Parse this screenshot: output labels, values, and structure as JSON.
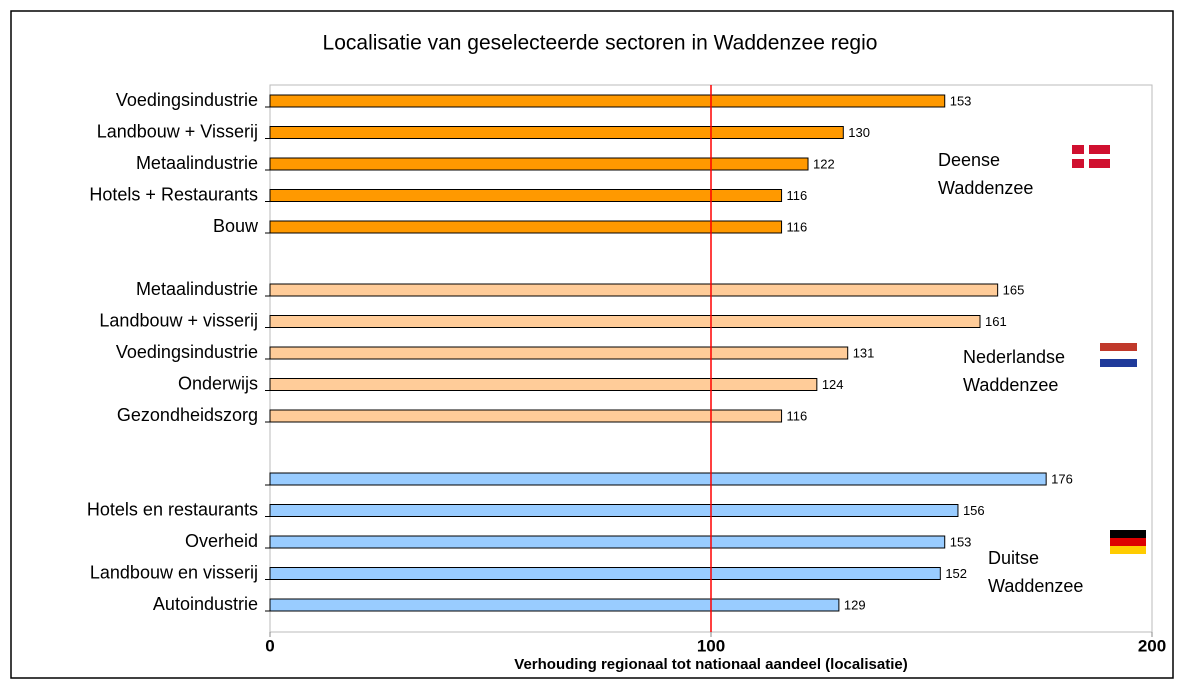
{
  "chart_data": {
    "type": "bar",
    "orientation": "horizontal",
    "title": "Localisatie van geselecteerde sectoren in Waddenzee regio",
    "x_label": "Verhouding regionaal tot nationaal aandeel (localisatie)",
    "xlim": [
      0,
      200
    ],
    "xticks": [
      0,
      100,
      200
    ],
    "reference_line": {
      "value": 100,
      "color": "#ff0000"
    },
    "series": [
      {
        "name": "Deense Waddenzee",
        "color": "#ff9900",
        "categories": [
          "Voedingsindustrie",
          "Landbouw + Visserij",
          "Metaalindustrie",
          "Hotels + Restaurants",
          "Bouw"
        ],
        "values": [
          153,
          130,
          122,
          116,
          116
        ]
      },
      {
        "name": "Nederlandse Waddenzee",
        "color": "#ffcc99",
        "categories": [
          "Metaalindustrie",
          "Landbouw + visserij",
          "Voedingsindustrie",
          "Onderwijs",
          "Gezondheidszorg"
        ],
        "values": [
          165,
          161,
          131,
          124,
          116
        ]
      },
      {
        "name": "Duitse Waddenzee",
        "color": "#99ccff",
        "categories": [
          null,
          "Hotels en restaurants",
          "Overheid",
          "Landbouw en visserij",
          "Autoindustrie"
        ],
        "values": [
          176,
          156,
          153,
          152,
          129
        ]
      }
    ]
  }
}
